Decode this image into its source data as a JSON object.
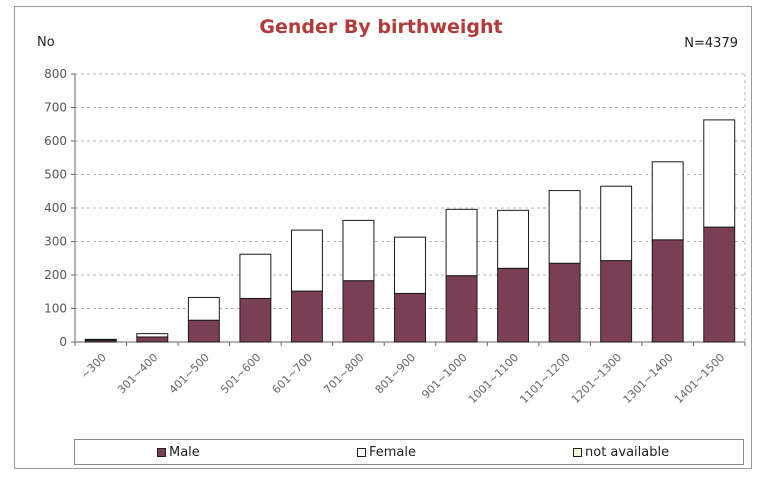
{
  "chart_data": {
    "type": "bar",
    "stacked": true,
    "title": "Gender By birthweight",
    "ylabel": "No",
    "note": "N=4379",
    "ylim": [
      0,
      800
    ],
    "yticks": [
      0,
      100,
      200,
      300,
      400,
      500,
      600,
      700,
      800
    ],
    "grid": true,
    "legend_position": "bottom",
    "categories": [
      "~300",
      "301~400",
      "401~500",
      "501~600",
      "601~700",
      "701~800",
      "801~900",
      "901~1000",
      "1001~1100",
      "1101~1200",
      "1201~1300",
      "1301~1400",
      "1401~1500"
    ],
    "series": [
      {
        "name": "Male",
        "color": "#7b3f55",
        "values": [
          5,
          15,
          65,
          130,
          152,
          183,
          145,
          198,
          220,
          235,
          243,
          305,
          343
        ]
      },
      {
        "name": "Female",
        "color": "#ffffff",
        "values": [
          3,
          10,
          68,
          132,
          182,
          180,
          168,
          198,
          173,
          217,
          222,
          233,
          320
        ]
      },
      {
        "name": "not available",
        "color": "#f6f6d4",
        "values": [
          0,
          0,
          0,
          0,
          0,
          0,
          0,
          0,
          0,
          0,
          0,
          0,
          0
        ]
      }
    ]
  }
}
